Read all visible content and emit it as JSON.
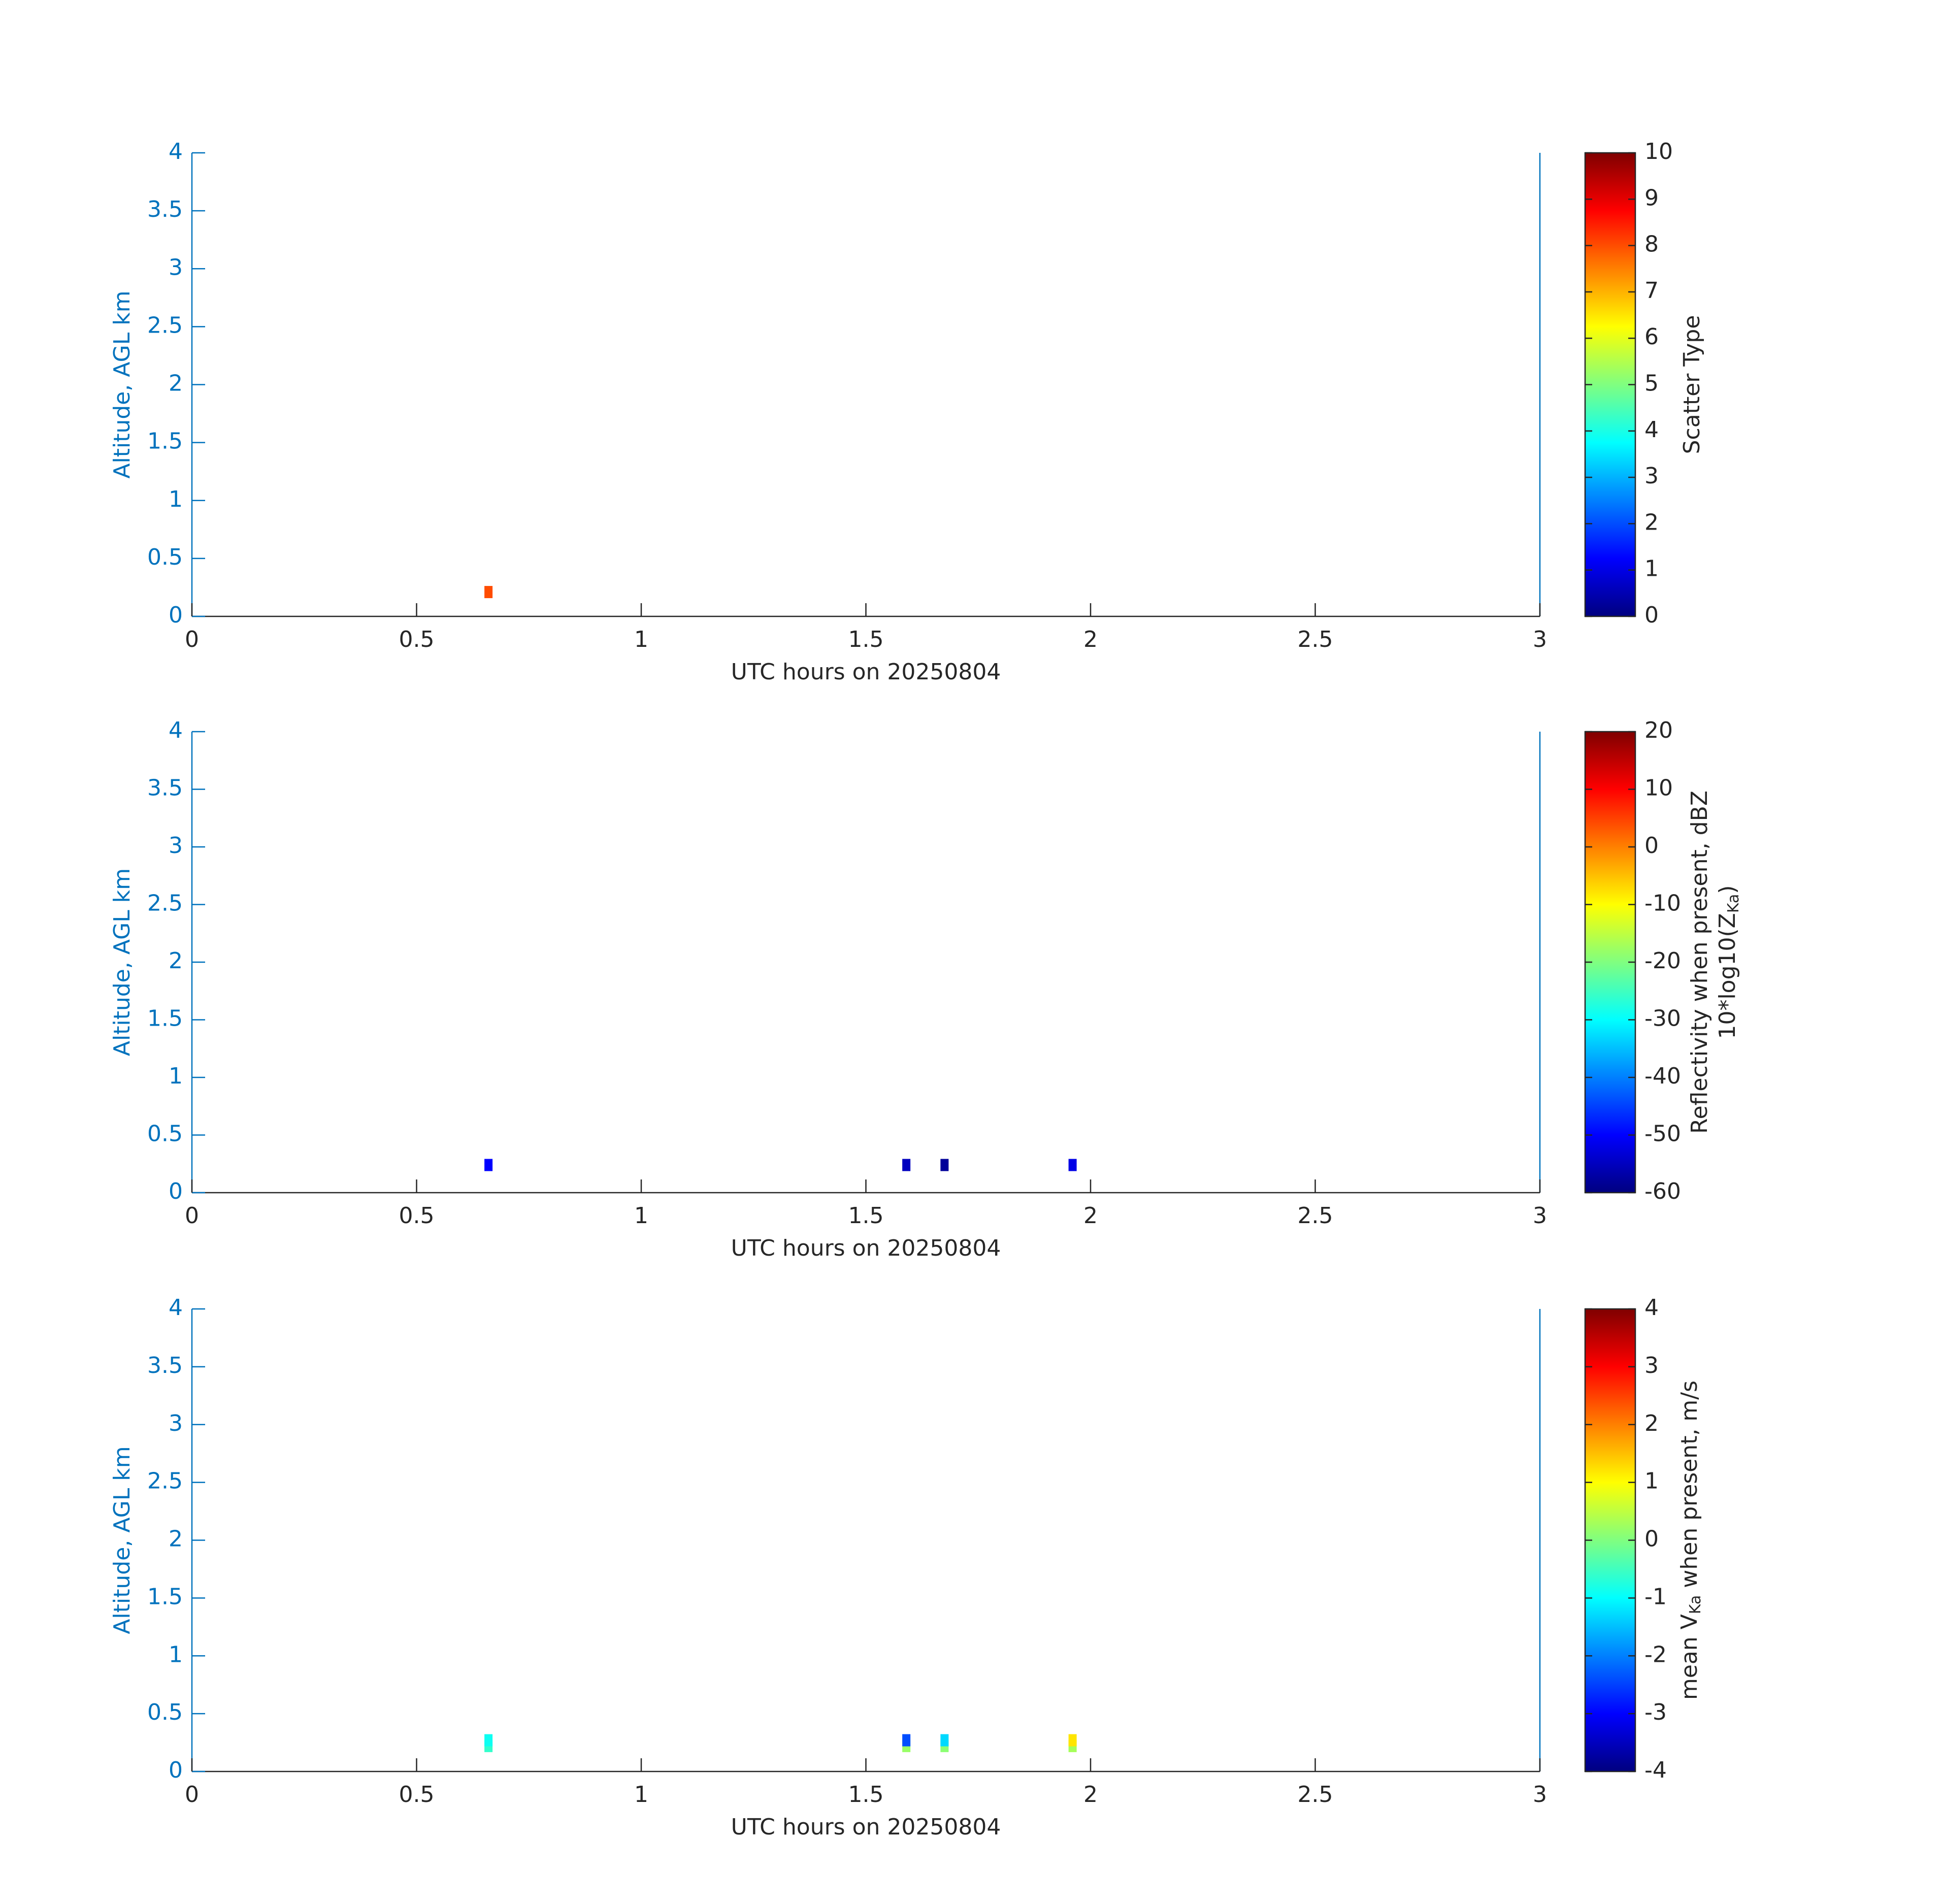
{
  "chart_data": [
    {
      "type": "heatmap",
      "xlabel": "UTC hours on 20250804",
      "ylabel": "Altitude, AGL km",
      "colorbar_label": [
        "Scatter Type"
      ],
      "x": [
        0.66
      ],
      "y": [
        0.21
      ],
      "values": [
        8
      ],
      "xlim": [
        0,
        3
      ],
      "xticks": [
        0,
        0.5,
        1,
        1.5,
        2,
        2.5,
        3
      ],
      "ylim": [
        0,
        4
      ],
      "yticks": [
        0,
        0.5,
        1,
        1.5,
        2,
        2.5,
        3,
        3.5,
        4
      ],
      "clim": [
        0,
        10
      ],
      "cticks": [
        0,
        1,
        2,
        3,
        4,
        5,
        6,
        7,
        8,
        9,
        10
      ],
      "colormap": "jet"
    },
    {
      "type": "heatmap",
      "xlabel": "UTC hours on 20250804",
      "ylabel": "Altitude, AGL km",
      "colorbar_label": [
        "Reflectivity when present, dBZ",
        "10*log10(Z",
        "Ka",
        ")"
      ],
      "x": [
        0.66,
        1.59,
        1.675,
        1.96
      ],
      "y": [
        0.24,
        0.24,
        0.24,
        0.24
      ],
      "values": [
        -50,
        -55,
        -58,
        -52
      ],
      "xlim": [
        0,
        3
      ],
      "xticks": [
        0,
        0.5,
        1,
        1.5,
        2,
        2.5,
        3
      ],
      "ylim": [
        0,
        4
      ],
      "yticks": [
        0,
        0.5,
        1,
        1.5,
        2,
        2.5,
        3,
        3.5,
        4
      ],
      "clim": [
        -60,
        20
      ],
      "cticks": [
        -60,
        -50,
        -40,
        -30,
        -20,
        -10,
        0,
        10,
        20
      ],
      "colormap": "jet"
    },
    {
      "type": "heatmap",
      "xlabel": "UTC hours on 20250804",
      "ylabel": "Altitude, AGL km",
      "colorbar_label": [
        "mean V",
        "Ka",
        " when present, m/s"
      ],
      "x": [
        0.66,
        0.66,
        1.59,
        1.59,
        1.675,
        1.675,
        1.96,
        1.96
      ],
      "y": [
        0.22,
        0.27,
        0.22,
        0.27,
        0.22,
        0.27,
        0.22,
        0.27
      ],
      "values": [
        -0.6,
        -0.9,
        0.2,
        -2.4,
        0.1,
        -1.3,
        0.3,
        1.2
      ],
      "xlim": [
        0,
        3
      ],
      "xticks": [
        0,
        0.5,
        1,
        1.5,
        2,
        2.5,
        3
      ],
      "ylim": [
        0,
        4
      ],
      "yticks": [
        0,
        0.5,
        1,
        1.5,
        2,
        2.5,
        3,
        3.5,
        4
      ],
      "clim": [
        -4,
        4
      ],
      "cticks": [
        -4,
        -3,
        -2,
        -1,
        0,
        1,
        2,
        3,
        4
      ],
      "colormap": "jet"
    }
  ]
}
